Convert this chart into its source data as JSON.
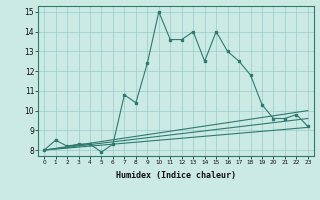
{
  "xlabel": "Humidex (Indice chaleur)",
  "ylabel": "",
  "bg_color": "#cceae4",
  "grid_color": "#99cccc",
  "line_color": "#2d7a6e",
  "xlim": [
    -0.5,
    23.5
  ],
  "ylim": [
    7.7,
    15.3
  ],
  "xticks": [
    0,
    1,
    2,
    3,
    4,
    5,
    6,
    7,
    8,
    9,
    10,
    11,
    12,
    13,
    14,
    15,
    16,
    17,
    18,
    19,
    20,
    21,
    22,
    23
  ],
  "yticks": [
    8,
    9,
    10,
    11,
    12,
    13,
    14,
    15
  ],
  "main_x": [
    0,
    1,
    2,
    3,
    4,
    5,
    6,
    7,
    8,
    9,
    10,
    11,
    12,
    13,
    14,
    15,
    16,
    17,
    18,
    19,
    20,
    21,
    22,
    23
  ],
  "main_y": [
    8.0,
    8.5,
    8.2,
    8.3,
    8.3,
    7.9,
    8.3,
    10.8,
    10.4,
    12.4,
    15.0,
    13.6,
    13.6,
    14.0,
    12.5,
    14.0,
    13.0,
    12.5,
    11.8,
    10.3,
    9.6,
    9.6,
    9.8,
    9.2
  ],
  "line2_x": [
    0,
    23
  ],
  "line2_y": [
    8.0,
    10.0
  ],
  "line3_x": [
    0,
    23
  ],
  "line3_y": [
    8.0,
    9.6
  ],
  "line4_x": [
    0,
    23
  ],
  "line4_y": [
    8.0,
    9.15
  ]
}
